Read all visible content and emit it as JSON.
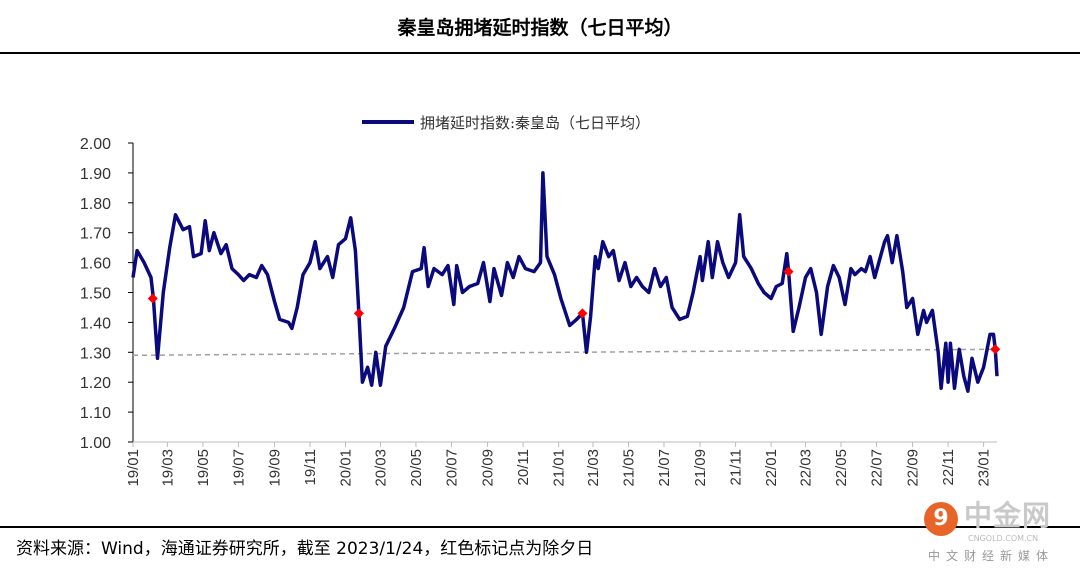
{
  "header": {
    "title": "秦皇岛拥堵延时指数（七日平均）"
  },
  "footer": {
    "source": "资料来源：Wind，海通证券研究所，截至 2023/1/24，红色标记点为除夕日"
  },
  "watermark": {
    "logo_text": "中金网",
    "url": "CNGOLD.COM.CN",
    "subtitle": "中文财经新媒体",
    "logo_icon": "swirl-icon"
  },
  "chart_data": {
    "type": "line",
    "title": "",
    "xlabel": "",
    "ylabel": "",
    "legend": {
      "position": "top-center"
    },
    "grid": false,
    "ylim": [
      1.0,
      2.0
    ],
    "xlim": [
      "2019-01-01",
      "2023-01-24"
    ],
    "y_ticks": [
      "1.00",
      "1.10",
      "1.20",
      "1.30",
      "1.40",
      "1.50",
      "1.60",
      "1.70",
      "1.80",
      "1.90",
      "2.00"
    ],
    "x_ticks": [
      "19/01",
      "19/03",
      "19/05",
      "19/07",
      "19/09",
      "19/11",
      "20/01",
      "20/03",
      "20/05",
      "20/07",
      "20/09",
      "20/11",
      "21/01",
      "21/03",
      "21/05",
      "21/07",
      "21/09",
      "21/11",
      "22/01",
      "22/03",
      "22/05",
      "22/07",
      "22/09",
      "22/11",
      "23/01"
    ],
    "colors": {
      "series": "#0a0a7d",
      "markers": "#ff0000",
      "reference": "#a0a0a0"
    },
    "series": [
      {
        "name": "拥堵延时指数:秦皇岛（七日平均）",
        "points": [
          [
            "2019-01-01",
            1.55
          ],
          [
            "2019-01-08",
            1.64
          ],
          [
            "2019-01-20",
            1.6
          ],
          [
            "2019-02-01",
            1.55
          ],
          [
            "2019-02-05",
            1.48
          ],
          [
            "2019-02-12",
            1.28
          ],
          [
            "2019-02-22",
            1.5
          ],
          [
            "2019-03-05",
            1.65
          ],
          [
            "2019-03-15",
            1.76
          ],
          [
            "2019-03-28",
            1.71
          ],
          [
            "2019-04-08",
            1.72
          ],
          [
            "2019-04-15",
            1.62
          ],
          [
            "2019-04-28",
            1.63
          ],
          [
            "2019-05-05",
            1.74
          ],
          [
            "2019-05-12",
            1.64
          ],
          [
            "2019-05-20",
            1.7
          ],
          [
            "2019-06-01",
            1.63
          ],
          [
            "2019-06-10",
            1.66
          ],
          [
            "2019-06-20",
            1.58
          ],
          [
            "2019-07-01",
            1.56
          ],
          [
            "2019-07-10",
            1.54
          ],
          [
            "2019-07-20",
            1.56
          ],
          [
            "2019-08-01",
            1.55
          ],
          [
            "2019-08-10",
            1.59
          ],
          [
            "2019-08-20",
            1.56
          ],
          [
            "2019-09-01",
            1.47
          ],
          [
            "2019-09-10",
            1.41
          ],
          [
            "2019-09-25",
            1.4
          ],
          [
            "2019-10-01",
            1.38
          ],
          [
            "2019-10-10",
            1.45
          ],
          [
            "2019-10-20",
            1.56
          ],
          [
            "2019-11-01",
            1.6
          ],
          [
            "2019-11-10",
            1.67
          ],
          [
            "2019-11-18",
            1.58
          ],
          [
            "2019-12-01",
            1.62
          ],
          [
            "2019-12-10",
            1.55
          ],
          [
            "2019-12-20",
            1.66
          ],
          [
            "2020-01-01",
            1.68
          ],
          [
            "2020-01-10",
            1.75
          ],
          [
            "2020-01-18",
            1.64
          ],
          [
            "2020-01-24",
            1.43
          ],
          [
            "2020-01-30",
            1.2
          ],
          [
            "2020-02-08",
            1.25
          ],
          [
            "2020-02-15",
            1.19
          ],
          [
            "2020-02-22",
            1.3
          ],
          [
            "2020-03-01",
            1.19
          ],
          [
            "2020-03-10",
            1.32
          ],
          [
            "2020-03-25",
            1.38
          ],
          [
            "2020-04-10",
            1.45
          ],
          [
            "2020-04-25",
            1.57
          ],
          [
            "2020-05-10",
            1.58
          ],
          [
            "2020-05-15",
            1.65
          ],
          [
            "2020-05-22",
            1.52
          ],
          [
            "2020-06-01",
            1.58
          ],
          [
            "2020-06-15",
            1.56
          ],
          [
            "2020-06-25",
            1.59
          ],
          [
            "2020-07-05",
            1.46
          ],
          [
            "2020-07-10",
            1.59
          ],
          [
            "2020-07-20",
            1.5
          ],
          [
            "2020-08-01",
            1.52
          ],
          [
            "2020-08-15",
            1.53
          ],
          [
            "2020-08-25",
            1.6
          ],
          [
            "2020-09-05",
            1.47
          ],
          [
            "2020-09-12",
            1.58
          ],
          [
            "2020-09-25",
            1.49
          ],
          [
            "2020-10-05",
            1.6
          ],
          [
            "2020-10-15",
            1.55
          ],
          [
            "2020-10-25",
            1.62
          ],
          [
            "2020-11-05",
            1.58
          ],
          [
            "2020-11-20",
            1.57
          ],
          [
            "2020-12-01",
            1.6
          ],
          [
            "2020-12-05",
            1.9
          ],
          [
            "2020-12-12",
            1.62
          ],
          [
            "2020-12-25",
            1.56
          ],
          [
            "2021-01-05",
            1.48
          ],
          [
            "2021-01-20",
            1.39
          ],
          [
            "2021-02-01",
            1.41
          ],
          [
            "2021-02-11",
            1.43
          ],
          [
            "2021-02-18",
            1.3
          ],
          [
            "2021-02-25",
            1.42
          ],
          [
            "2021-03-05",
            1.62
          ],
          [
            "2021-03-10",
            1.58
          ],
          [
            "2021-03-18",
            1.67
          ],
          [
            "2021-03-28",
            1.62
          ],
          [
            "2021-04-05",
            1.64
          ],
          [
            "2021-04-15",
            1.54
          ],
          [
            "2021-04-25",
            1.6
          ],
          [
            "2021-05-05",
            1.52
          ],
          [
            "2021-05-15",
            1.55
          ],
          [
            "2021-05-25",
            1.52
          ],
          [
            "2021-06-05",
            1.5
          ],
          [
            "2021-06-15",
            1.58
          ],
          [
            "2021-06-25",
            1.52
          ],
          [
            "2021-07-05",
            1.55
          ],
          [
            "2021-07-15",
            1.45
          ],
          [
            "2021-07-28",
            1.41
          ],
          [
            "2021-08-10",
            1.42
          ],
          [
            "2021-08-20",
            1.5
          ],
          [
            "2021-09-01",
            1.62
          ],
          [
            "2021-09-05",
            1.54
          ],
          [
            "2021-09-15",
            1.67
          ],
          [
            "2021-09-22",
            1.55
          ],
          [
            "2021-10-01",
            1.67
          ],
          [
            "2021-10-10",
            1.6
          ],
          [
            "2021-10-20",
            1.55
          ],
          [
            "2021-11-01",
            1.6
          ],
          [
            "2021-11-08",
            1.76
          ],
          [
            "2021-11-15",
            1.62
          ],
          [
            "2021-11-28",
            1.58
          ],
          [
            "2021-12-10",
            1.53
          ],
          [
            "2021-12-20",
            1.5
          ],
          [
            "2022-01-01",
            1.48
          ],
          [
            "2022-01-10",
            1.52
          ],
          [
            "2022-01-20",
            1.53
          ],
          [
            "2022-01-28",
            1.63
          ],
          [
            "2022-01-31",
            1.57
          ],
          [
            "2022-02-08",
            1.37
          ],
          [
            "2022-02-18",
            1.45
          ],
          [
            "2022-03-01",
            1.55
          ],
          [
            "2022-03-10",
            1.58
          ],
          [
            "2022-03-20",
            1.5
          ],
          [
            "2022-03-28",
            1.36
          ],
          [
            "2022-04-08",
            1.52
          ],
          [
            "2022-04-18",
            1.59
          ],
          [
            "2022-04-28",
            1.55
          ],
          [
            "2022-05-08",
            1.46
          ],
          [
            "2022-05-18",
            1.58
          ],
          [
            "2022-05-25",
            1.56
          ],
          [
            "2022-06-05",
            1.58
          ],
          [
            "2022-06-12",
            1.57
          ],
          [
            "2022-06-20",
            1.62
          ],
          [
            "2022-06-28",
            1.55
          ],
          [
            "2022-07-05",
            1.6
          ],
          [
            "2022-07-15",
            1.67
          ],
          [
            "2022-07-20",
            1.69
          ],
          [
            "2022-07-28",
            1.6
          ],
          [
            "2022-08-05",
            1.69
          ],
          [
            "2022-08-15",
            1.57
          ],
          [
            "2022-08-22",
            1.45
          ],
          [
            "2022-09-01",
            1.48
          ],
          [
            "2022-09-10",
            1.36
          ],
          [
            "2022-09-20",
            1.44
          ],
          [
            "2022-09-25",
            1.4
          ],
          [
            "2022-10-05",
            1.44
          ],
          [
            "2022-10-15",
            1.3
          ],
          [
            "2022-10-20",
            1.18
          ],
          [
            "2022-10-28",
            1.33
          ],
          [
            "2022-11-01",
            1.2
          ],
          [
            "2022-11-05",
            1.33
          ],
          [
            "2022-11-12",
            1.18
          ],
          [
            "2022-11-20",
            1.31
          ],
          [
            "2022-11-28",
            1.22
          ],
          [
            "2022-12-05",
            1.17
          ],
          [
            "2022-12-12",
            1.28
          ],
          [
            "2022-12-22",
            1.2
          ],
          [
            "2023-01-01",
            1.25
          ],
          [
            "2023-01-12",
            1.36
          ],
          [
            "2023-01-18",
            1.36
          ],
          [
            "2023-01-21",
            1.31
          ],
          [
            "2023-01-24",
            1.22
          ]
        ]
      }
    ],
    "markers": [
      [
        "2019-02-04",
        1.48
      ],
      [
        "2020-01-24",
        1.43
      ],
      [
        "2021-02-11",
        1.43
      ],
      [
        "2022-01-31",
        1.57
      ],
      [
        "2023-01-21",
        1.31
      ]
    ],
    "reference_line": {
      "style": "dashed",
      "points": [
        [
          "2019-01-01",
          1.29
        ],
        [
          "2023-01-24",
          1.31
        ]
      ]
    }
  }
}
